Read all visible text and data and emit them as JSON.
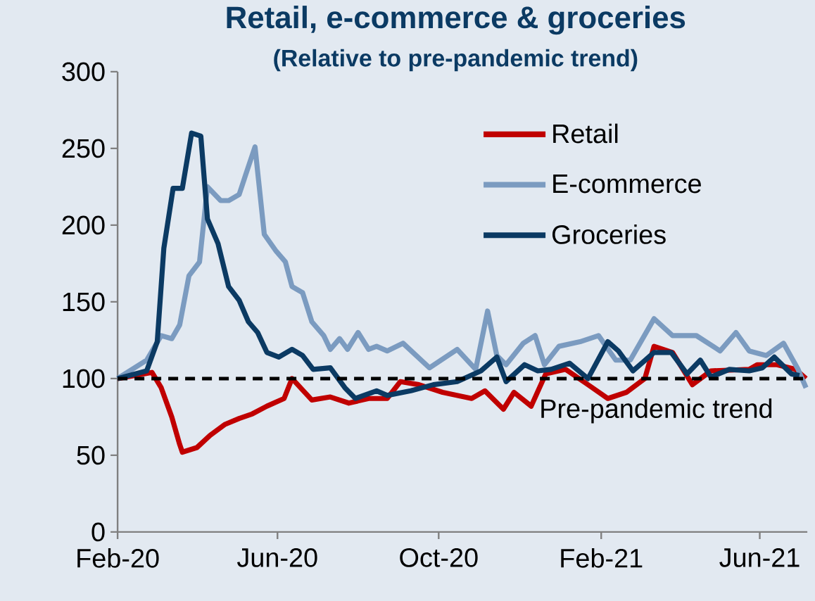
{
  "chart_data": {
    "type": "line",
    "title": "Retail, e-commerce & groceries",
    "subtitle": "(Relative to pre-pandemic trend)",
    "xlim": [
      "2020-02-01",
      "2021-07-07"
    ],
    "xticks": [
      {
        "value": "2020-02-01",
        "label": "Feb-20"
      },
      {
        "value": "2020-06-01",
        "label": "Jun-20"
      },
      {
        "value": "2020-10-01",
        "label": "Oct-20"
      },
      {
        "value": "2021-02-01",
        "label": "Feb-21"
      },
      {
        "value": "2021-06-01",
        "label": "Jun-21"
      }
    ],
    "ylim": [
      0,
      300
    ],
    "yticks": [
      0,
      50,
      100,
      150,
      200,
      250,
      300
    ],
    "legend": "top right",
    "ref_lines": [
      {
        "axis": "y",
        "value": 100,
        "label": "Pre-pandemic trend",
        "color": "#000000",
        "line_style": "dashed"
      }
    ],
    "series": [
      {
        "name": "Retail",
        "color": "#c00000",
        "x": [
          "2020-02-01",
          "2020-02-27",
          "2020-03-05",
          "2020-03-13",
          "2020-03-19",
          "2020-03-21",
          "2020-04-01",
          "2020-04-11",
          "2020-04-22",
          "2020-05-03",
          "2020-05-13",
          "2020-05-24",
          "2020-06-06",
          "2020-06-12",
          "2020-06-27",
          "2020-07-11",
          "2020-07-25",
          "2020-08-09",
          "2020-08-23",
          "2020-09-02",
          "2020-09-16",
          "2020-10-04",
          "2020-10-26",
          "2020-11-05",
          "2020-11-19",
          "2020-11-27",
          "2020-12-10",
          "2020-12-21",
          "2021-01-05",
          "2021-01-22",
          "2021-02-06",
          "2021-02-20",
          "2021-03-06",
          "2021-03-13",
          "2021-03-27",
          "2021-04-11",
          "2021-04-25",
          "2021-05-24",
          "2021-05-30",
          "2021-06-14",
          "2021-06-28",
          "2021-07-06"
        ],
        "values": [
          100,
          104,
          94,
          75,
          57,
          52,
          55,
          63,
          70,
          74,
          77,
          82,
          87,
          100,
          86,
          88,
          84,
          87,
          87,
          98,
          96,
          91,
          87,
          92,
          80,
          91,
          82,
          103,
          106,
          96,
          87,
          91,
          100,
          121,
          117,
          96,
          105,
          106,
          109,
          109,
          106,
          100
        ]
      },
      {
        "name": "E-commerce",
        "color": "#7b9bc0",
        "x": [
          "2020-02-01",
          "2020-02-23",
          "2020-03-05",
          "2020-03-13",
          "2020-03-19",
          "2020-03-26",
          "2020-04-03",
          "2020-04-09",
          "2020-04-19",
          "2020-04-25",
          "2020-05-03",
          "2020-05-08",
          "2020-05-15",
          "2020-05-22",
          "2020-05-31",
          "2020-06-07",
          "2020-06-12",
          "2020-06-20",
          "2020-06-27",
          "2020-07-06",
          "2020-07-11",
          "2020-07-18",
          "2020-07-24",
          "2020-08-01",
          "2020-08-09",
          "2020-08-15",
          "2020-08-23",
          "2020-09-04",
          "2020-09-24",
          "2020-10-15",
          "2020-10-29",
          "2020-11-07",
          "2020-11-14",
          "2020-11-21",
          "2020-12-04",
          "2020-12-13",
          "2020-12-20",
          "2020-12-31",
          "2021-01-16",
          "2021-01-30",
          "2021-02-12",
          "2021-02-23",
          "2021-03-13",
          "2021-03-27",
          "2021-04-14",
          "2021-05-02",
          "2021-05-14",
          "2021-05-24",
          "2021-06-06",
          "2021-06-19",
          "2021-06-30",
          "2021-07-06"
        ],
        "values": [
          100,
          112,
          128,
          126,
          135,
          167,
          176,
          225,
          216,
          216,
          220,
          233,
          251,
          194,
          183,
          176,
          160,
          156,
          137,
          128,
          119,
          126,
          119,
          130,
          119,
          121,
          118,
          123,
          107,
          119,
          106,
          144,
          115,
          109,
          123,
          128,
          109,
          121,
          124,
          128,
          112,
          112,
          139,
          128,
          128,
          118,
          130,
          118,
          115,
          123,
          106,
          94
        ]
      },
      {
        "name": "Groceries",
        "color": "#0b3a63",
        "x": [
          "2020-02-01",
          "2020-02-23",
          "2020-03-02",
          "2020-03-07",
          "2020-03-14",
          "2020-03-21",
          "2020-03-28",
          "2020-04-04",
          "2020-04-09",
          "2020-04-17",
          "2020-04-25",
          "2020-05-03",
          "2020-05-10",
          "2020-05-17",
          "2020-05-24",
          "2020-06-02",
          "2020-06-12",
          "2020-06-20",
          "2020-06-28",
          "2020-07-11",
          "2020-07-22",
          "2020-07-30",
          "2020-08-15",
          "2020-08-23",
          "2020-09-10",
          "2020-09-27",
          "2020-10-15",
          "2020-11-02",
          "2020-11-14",
          "2020-11-21",
          "2020-12-05",
          "2020-12-15",
          "2020-12-25",
          "2021-01-08",
          "2021-01-22",
          "2021-02-06",
          "2021-02-14",
          "2021-02-25",
          "2021-03-13",
          "2021-03-26",
          "2021-04-07",
          "2021-04-17",
          "2021-04-25",
          "2021-05-09",
          "2021-05-24",
          "2021-06-03",
          "2021-06-12",
          "2021-06-25",
          "2021-07-01"
        ],
        "values": [
          100,
          105,
          124,
          185,
          224,
          224,
          260,
          258,
          204,
          188,
          160,
          151,
          137,
          130,
          117,
          114,
          119,
          115,
          106,
          107,
          94,
          87,
          92,
          89,
          92,
          96,
          98,
          105,
          114,
          98,
          109,
          105,
          106,
          110,
          100,
          124,
          118,
          105,
          117,
          117,
          103,
          112,
          101,
          106,
          105,
          107,
          114,
          103,
          102
        ]
      }
    ]
  }
}
